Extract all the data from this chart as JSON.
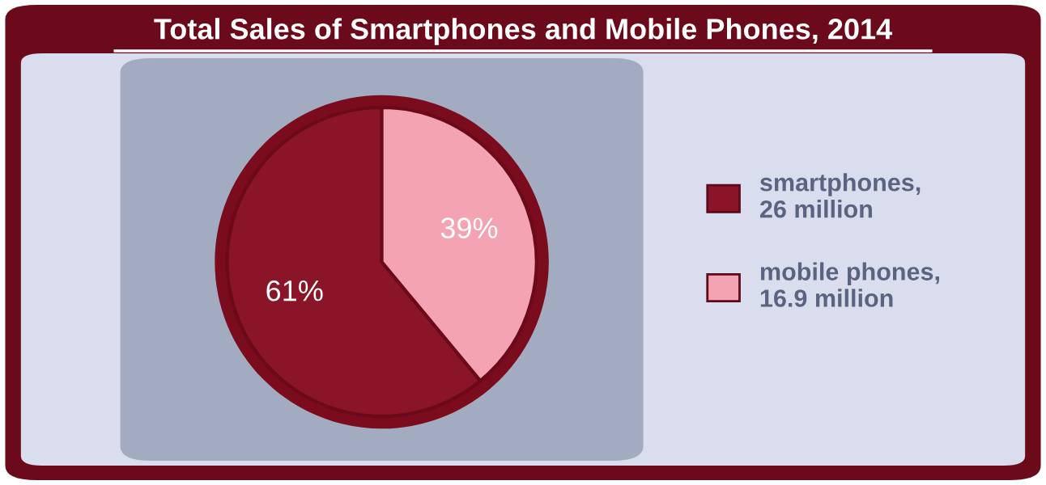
{
  "chart_data": {
    "type": "pie",
    "title": "Total Sales of Smartphones and Mobile Phones, 2014",
    "categories": [
      "smartphones,\n26 million",
      "mobile phones,\n16.9 million"
    ],
    "values": [
      61,
      39
    ],
    "colors": [
      "#8a1428",
      "#f4a3b3"
    ],
    "value_labels": [
      "61%",
      "39%"
    ],
    "legend": "right"
  }
}
